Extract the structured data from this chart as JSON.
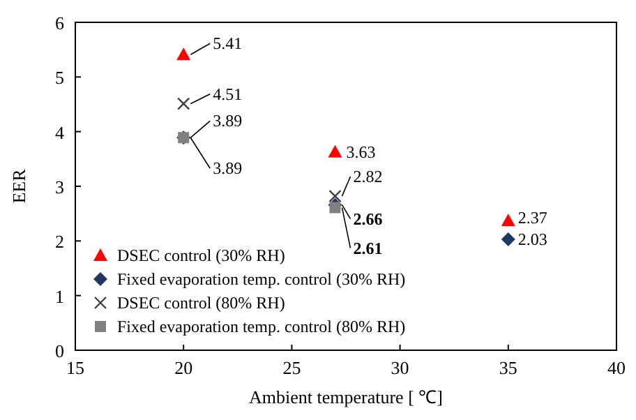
{
  "chart_data": {
    "type": "scatter",
    "xlabel": "Ambient temperature [ ℃]",
    "ylabel": "EER",
    "xlim": [
      15,
      40
    ],
    "xticks": [
      15,
      20,
      25,
      30,
      35,
      40
    ],
    "ylim": [
      0,
      6
    ],
    "yticks": [
      0,
      1,
      2,
      3,
      4,
      5,
      6
    ],
    "grid": false,
    "legend": "bottom left",
    "data_labels": true,
    "series": [
      {
        "name": "DSEC control (30% RH)",
        "color": "#ff0000",
        "marker": "triangle",
        "x": [
          20,
          27,
          35
        ],
        "values": [
          5.41,
          3.63,
          2.37
        ]
      },
      {
        "name": "Fixed evaporation temp. control (30% RH)",
        "color": "#1f3864",
        "marker": "diamond",
        "x": [
          20,
          27,
          35
        ],
        "values": [
          3.89,
          2.66,
          2.03
        ]
      },
      {
        "name": "DSEC control (80% RH)",
        "color": "#404040",
        "marker": "cross",
        "x": [
          20,
          27
        ],
        "values": [
          4.51,
          2.82
        ]
      },
      {
        "name": "Fixed evaporation temp. control (80% RH)",
        "color": "#808080",
        "marker": "square",
        "x": [
          20,
          27
        ],
        "values": [
          3.89,
          2.61
        ]
      }
    ]
  }
}
